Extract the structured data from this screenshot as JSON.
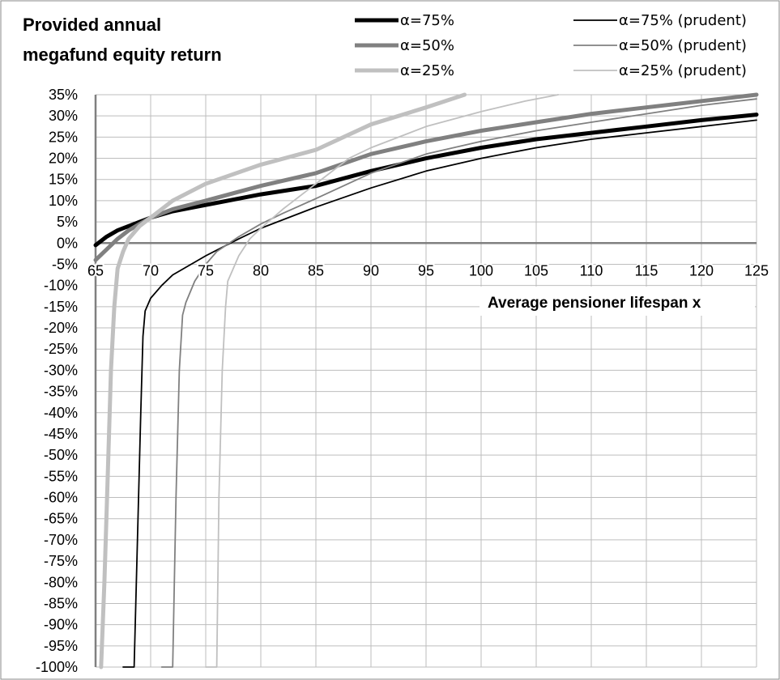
{
  "chart_data": {
    "type": "line",
    "title_lines": [
      "Provided annual",
      "megafund equity return"
    ],
    "xlabel": "Average pensioner lifespan x",
    "ylabel": "",
    "xlim": [
      65,
      125
    ],
    "ylim": [
      -100,
      35
    ],
    "x_ticks": [
      "65",
      "70",
      "75",
      "80",
      "85",
      "90",
      "95",
      "100",
      "105",
      "110",
      "115",
      "120",
      "125"
    ],
    "y_ticks": [
      "35%",
      "30%",
      "25%",
      "20%",
      "15%",
      "10%",
      "5%",
      "0%",
      "-5%",
      "-10%",
      "-15%",
      "-20%",
      "-25%",
      "-30%",
      "-35%",
      "-40%",
      "-45%",
      "-50%",
      "-55%",
      "-60%",
      "-65%",
      "-70%",
      "-75%",
      "-80%",
      "-85%",
      "-90%",
      "-95%",
      "-100%"
    ],
    "grid": true,
    "legend_position": "top",
    "series": [
      {
        "name": "α=75%",
        "color": "#000000",
        "style": "thick",
        "points": [
          [
            65,
            -0.5
          ],
          [
            66,
            1.5
          ],
          [
            67,
            3
          ],
          [
            68,
            4
          ],
          [
            69,
            5
          ],
          [
            70,
            6
          ],
          [
            72,
            7.5
          ],
          [
            75,
            9
          ],
          [
            80,
            11.5
          ],
          [
            85,
            13.5
          ],
          [
            90,
            17
          ],
          [
            95,
            20
          ],
          [
            100,
            22.5
          ],
          [
            105,
            24.5
          ],
          [
            110,
            26
          ],
          [
            115,
            27.5
          ],
          [
            120,
            29
          ],
          [
            125,
            30.3
          ]
        ]
      },
      {
        "name": "α=50%",
        "color": "#808080",
        "style": "thick",
        "points": [
          [
            65,
            -4
          ],
          [
            66,
            -1.5
          ],
          [
            67,
            1
          ],
          [
            68,
            3
          ],
          [
            69,
            4.5
          ],
          [
            70,
            6
          ],
          [
            72,
            8
          ],
          [
            75,
            10
          ],
          [
            80,
            13.5
          ],
          [
            85,
            16.5
          ],
          [
            90,
            21
          ],
          [
            95,
            24
          ],
          [
            100,
            26.5
          ],
          [
            105,
            28.5
          ],
          [
            110,
            30.5
          ],
          [
            115,
            32
          ],
          [
            120,
            33.5
          ],
          [
            125,
            35
          ]
        ]
      },
      {
        "name": "α=25%",
        "color": "#c0c0c0",
        "style": "thick",
        "points": [
          [
            65.5,
            -100
          ],
          [
            65.8,
            -80
          ],
          [
            66.1,
            -55
          ],
          [
            66.4,
            -30
          ],
          [
            66.7,
            -15
          ],
          [
            67,
            -6
          ],
          [
            67.5,
            -2
          ],
          [
            68,
            1
          ],
          [
            69,
            4
          ],
          [
            70,
            6
          ],
          [
            72,
            10
          ],
          [
            75,
            14
          ],
          [
            80,
            18.5
          ],
          [
            85,
            22
          ],
          [
            90,
            28
          ],
          [
            95,
            32
          ],
          [
            98.5,
            35
          ]
        ]
      },
      {
        "name": "α=75% (prudent)",
        "color": "#000000",
        "style": "thin",
        "points": [
          [
            67.5,
            -100
          ],
          [
            68.5,
            -100
          ],
          [
            68.8,
            -70
          ],
          [
            69.1,
            -40
          ],
          [
            69.3,
            -22
          ],
          [
            69.5,
            -16
          ],
          [
            70,
            -13
          ],
          [
            71,
            -10
          ],
          [
            72,
            -7.5
          ],
          [
            75,
            -3
          ],
          [
            78,
            1
          ],
          [
            80,
            3.5
          ],
          [
            82,
            5.5
          ],
          [
            85,
            8.5
          ],
          [
            90,
            13
          ],
          [
            95,
            17
          ],
          [
            100,
            20
          ],
          [
            105,
            22.5
          ],
          [
            110,
            24.5
          ],
          [
            115,
            26
          ],
          [
            120,
            27.5
          ],
          [
            125,
            29
          ]
        ]
      },
      {
        "name": "α=50% (prudent)",
        "color": "#808080",
        "style": "thin",
        "points": [
          [
            71,
            -100
          ],
          [
            72,
            -100
          ],
          [
            72.3,
            -60
          ],
          [
            72.6,
            -30
          ],
          [
            72.9,
            -17
          ],
          [
            73.2,
            -14
          ],
          [
            74,
            -9
          ],
          [
            75,
            -5
          ],
          [
            76,
            -2
          ],
          [
            78,
            1.5
          ],
          [
            80,
            4.5
          ],
          [
            82,
            7
          ],
          [
            85,
            10.5
          ],
          [
            90,
            16.5
          ],
          [
            95,
            21
          ],
          [
            100,
            24
          ],
          [
            105,
            26.5
          ],
          [
            110,
            28.5
          ],
          [
            115,
            30.5
          ],
          [
            120,
            32.5
          ],
          [
            125,
            34
          ]
        ]
      },
      {
        "name": "α=25% (prudent)",
        "color": "#c0c0c0",
        "style": "thin",
        "points": [
          [
            75,
            -100
          ],
          [
            76,
            -100
          ],
          [
            76.2,
            -60
          ],
          [
            76.5,
            -30
          ],
          [
            76.8,
            -15
          ],
          [
            77,
            -9
          ],
          [
            78,
            -3
          ],
          [
            79,
            1
          ],
          [
            80,
            3.5
          ],
          [
            82,
            8
          ],
          [
            85,
            14
          ],
          [
            88,
            20
          ],
          [
            90,
            22.5
          ],
          [
            95,
            27.5
          ],
          [
            100,
            31
          ],
          [
            104,
            33.5
          ],
          [
            107,
            35
          ]
        ]
      }
    ]
  }
}
